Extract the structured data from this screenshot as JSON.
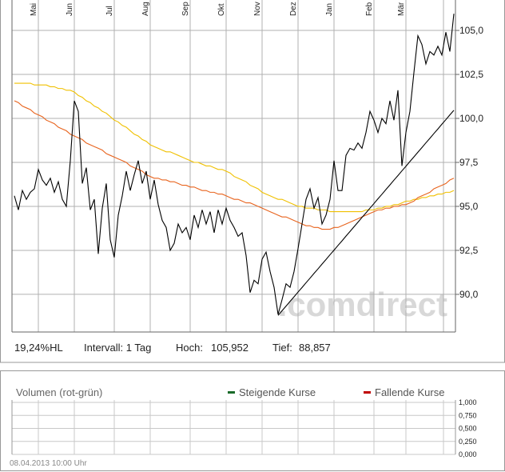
{
  "chart_data": [
    {
      "type": "line",
      "categories": [
        null,
        null,
        null,
        null,
        null,
        null,
        "Mai",
        null,
        null,
        null,
        null,
        null,
        null,
        null,
        null,
        "Jun",
        null,
        null,
        null,
        null,
        null,
        null,
        null,
        null,
        null,
        "Jul",
        null,
        null,
        null,
        null,
        null,
        null,
        null,
        null,
        "Aug",
        null,
        null,
        null,
        null,
        null,
        null,
        null,
        null,
        null,
        "Sep",
        null,
        null,
        null,
        null,
        null,
        null,
        null,
        null,
        "Okt",
        null,
        null,
        null,
        null,
        null,
        null,
        null,
        null,
        "Nov",
        null,
        null,
        null,
        null,
        null,
        null,
        null,
        null,
        "Dez",
        null,
        null,
        null,
        null,
        null,
        null,
        null,
        null,
        "Jan",
        null,
        null,
        null,
        null,
        null,
        null,
        null,
        null,
        null,
        "Feb",
        null,
        null,
        null,
        null,
        null,
        null,
        null,
        "Mär",
        null,
        null,
        null,
        null,
        null,
        null,
        null,
        null,
        null,
        null,
        null,
        null
      ],
      "series": [
        {
          "color": "#f0c000",
          "values": [
            102.0,
            102.0,
            102.0,
            102.0,
            102.0,
            101.9,
            101.9,
            101.9,
            101.9,
            101.8,
            101.8,
            101.7,
            101.7,
            101.6,
            101.6,
            101.5,
            101.3,
            101.2,
            101.0,
            100.9,
            100.7,
            100.6,
            100.4,
            100.3,
            100.1,
            99.9,
            99.8,
            99.6,
            99.5,
            99.3,
            99.1,
            99.0,
            98.8,
            98.7,
            98.5,
            98.4,
            98.3,
            98.2,
            98.1,
            98.1,
            98.0,
            97.9,
            97.8,
            97.7,
            97.6,
            97.5,
            97.5,
            97.4,
            97.3,
            97.3,
            97.2,
            97.1,
            97.1,
            97.0,
            96.9,
            96.7,
            96.6,
            96.5,
            96.4,
            96.2,
            96.1,
            96.0,
            95.8,
            95.7,
            95.6,
            95.5,
            95.4,
            95.4,
            95.3,
            95.2,
            95.1,
            95.0,
            95.0,
            94.9,
            94.9,
            94.9,
            94.8,
            94.8,
            94.8,
            94.7,
            94.7,
            94.7,
            94.7,
            94.7,
            94.7,
            94.7,
            94.7,
            94.7,
            94.8,
            94.8,
            94.8,
            94.9,
            94.9,
            95.0,
            95.0,
            95.1,
            95.1,
            95.2,
            95.3,
            95.3,
            95.4,
            95.4,
            95.5,
            95.5,
            95.6,
            95.6,
            95.7,
            95.7,
            95.8,
            95.8,
            95.9
          ]
        },
        {
          "color": "#e8641e",
          "values": [
            101.0,
            100.9,
            100.7,
            100.6,
            100.5,
            100.3,
            100.2,
            100.1,
            99.9,
            99.8,
            99.7,
            99.5,
            99.4,
            99.3,
            99.1,
            99.0,
            98.9,
            98.8,
            98.6,
            98.5,
            98.4,
            98.3,
            98.2,
            98.0,
            97.9,
            97.8,
            97.7,
            97.6,
            97.5,
            97.3,
            97.2,
            97.1,
            97.0,
            96.8,
            96.7,
            96.6,
            96.6,
            96.5,
            96.5,
            96.4,
            96.4,
            96.3,
            96.2,
            96.2,
            96.1,
            96.1,
            96.0,
            95.9,
            95.9,
            95.8,
            95.8,
            95.7,
            95.7,
            95.6,
            95.5,
            95.4,
            95.4,
            95.3,
            95.2,
            95.2,
            95.1,
            95.0,
            94.9,
            94.8,
            94.7,
            94.6,
            94.5,
            94.4,
            94.4,
            94.3,
            94.2,
            94.1,
            94.0,
            93.9,
            93.9,
            93.8,
            93.8,
            93.7,
            93.7,
            93.7,
            93.8,
            93.8,
            93.9,
            94.0,
            94.1,
            94.2,
            94.3,
            94.4,
            94.5,
            94.6,
            94.7,
            94.8,
            94.8,
            94.9,
            94.9,
            95.0,
            95.0,
            95.1,
            95.1,
            95.2,
            95.3,
            95.5,
            95.6,
            95.7,
            95.8,
            96.0,
            96.1,
            96.2,
            96.3,
            96.5,
            96.6
          ]
        },
        {
          "color": "#000000",
          "values": [
            95.6,
            94.8,
            95.9,
            95.4,
            95.8,
            96.0,
            97.1,
            96.5,
            96.2,
            96.6,
            95.8,
            96.4,
            95.4,
            95.0,
            97.6,
            101.0,
            100.4,
            96.3,
            97.2,
            94.8,
            95.4,
            92.3,
            94.9,
            96.3,
            93.1,
            92.1,
            94.5,
            95.6,
            97.0,
            95.9,
            96.8,
            97.6,
            96.3,
            97.0,
            95.4,
            96.5,
            95.1,
            94.2,
            93.8,
            92.5,
            92.9,
            94.0,
            93.5,
            93.8,
            93.1,
            94.5,
            93.8,
            94.8,
            94.0,
            94.7,
            93.5,
            94.8,
            94.0,
            94.9,
            94.2,
            93.8,
            93.3,
            93.5,
            92.2,
            90.1,
            90.8,
            90.6,
            92.0,
            92.4,
            91.3,
            90.4,
            88.86,
            89.7,
            90.6,
            90.4,
            91.3,
            92.6,
            94.0,
            95.4,
            96.0,
            94.9,
            95.5,
            94.0,
            94.5,
            95.4,
            97.6,
            95.9,
            95.9,
            97.9,
            98.3,
            98.2,
            98.6,
            98.3,
            99.2,
            100.4,
            99.9,
            99.2,
            100.0,
            99.7,
            101.0,
            99.9,
            101.6,
            97.3,
            99.2,
            100.4,
            102.6,
            104.7,
            104.2,
            103.1,
            103.8,
            103.6,
            104.1,
            103.6,
            104.9,
            103.8,
            105.95
          ]
        },
        {
          "color": "#000000",
          "values": [
            null,
            null,
            null,
            null,
            null,
            null,
            null,
            null,
            null,
            null,
            null,
            null,
            null,
            null,
            null,
            null,
            null,
            null,
            null,
            null,
            null,
            null,
            null,
            null,
            null,
            null,
            null,
            null,
            null,
            null,
            null,
            null,
            null,
            null,
            null,
            null,
            null,
            null,
            null,
            null,
            null,
            null,
            null,
            null,
            null,
            null,
            null,
            null,
            null,
            null,
            null,
            null,
            null,
            null,
            null,
            null,
            null,
            null,
            null,
            null,
            null,
            null,
            null,
            null,
            null,
            null,
            88.8,
            89.07,
            89.33,
            89.6,
            89.86,
            90.13,
            90.39,
            90.66,
            90.92,
            91.19,
            91.45,
            91.72,
            91.98,
            92.25,
            92.51,
            92.78,
            93.04,
            93.31,
            93.57,
            93.84,
            94.1,
            94.37,
            94.63,
            94.9,
            95.16,
            95.43,
            95.69,
            95.96,
            96.22,
            96.49,
            96.75,
            97.02,
            97.28,
            97.55,
            97.81,
            98.08,
            98.34,
            98.61,
            98.87,
            99.14,
            99.4,
            99.67,
            99.93,
            100.2,
            100.46
          ]
        }
      ],
      "ylim": [
        87.86,
        106.73
      ],
      "yticks": [
        {
          "value": 90,
          "label": "90,0"
        },
        {
          "value": 92.5,
          "label": "92,5"
        },
        {
          "value": 95,
          "label": "95,0"
        },
        {
          "value": 97.5,
          "label": "97,5"
        },
        {
          "value": 100,
          "label": "100,0"
        },
        {
          "value": 102.5,
          "label": "102,5"
        },
        {
          "value": 105,
          "label": "105,0"
        }
      ],
      "grid": true,
      "watermark": ".comdirect",
      "stats": {
        "range": "19,24%HL",
        "interval": "Intervall: 1 Tag",
        "high_label": "Hoch:",
        "high": "105,952",
        "low_label": "Tief:",
        "low": "88,857"
      }
    },
    {
      "type": "bar",
      "title": "Volumen (rot-grün)",
      "series": [
        {
          "name": "Steigende Kurse",
          "color": "#1a6b2a"
        },
        {
          "name": "Fallende Kurse",
          "color": "#c00000"
        }
      ],
      "ylim": [
        0,
        1
      ],
      "yticks": [
        {
          "value": 0,
          "label": "0,000"
        },
        {
          "value": 0.25,
          "label": "0,250"
        },
        {
          "value": 0.5,
          "label": "0,500"
        },
        {
          "value": 0.75,
          "label": "0,750"
        },
        {
          "value": 1,
          "label": "1,000"
        }
      ],
      "grid": true
    }
  ],
  "footer": {
    "timestamp": "08.04.2013 10:00 Uhr"
  }
}
